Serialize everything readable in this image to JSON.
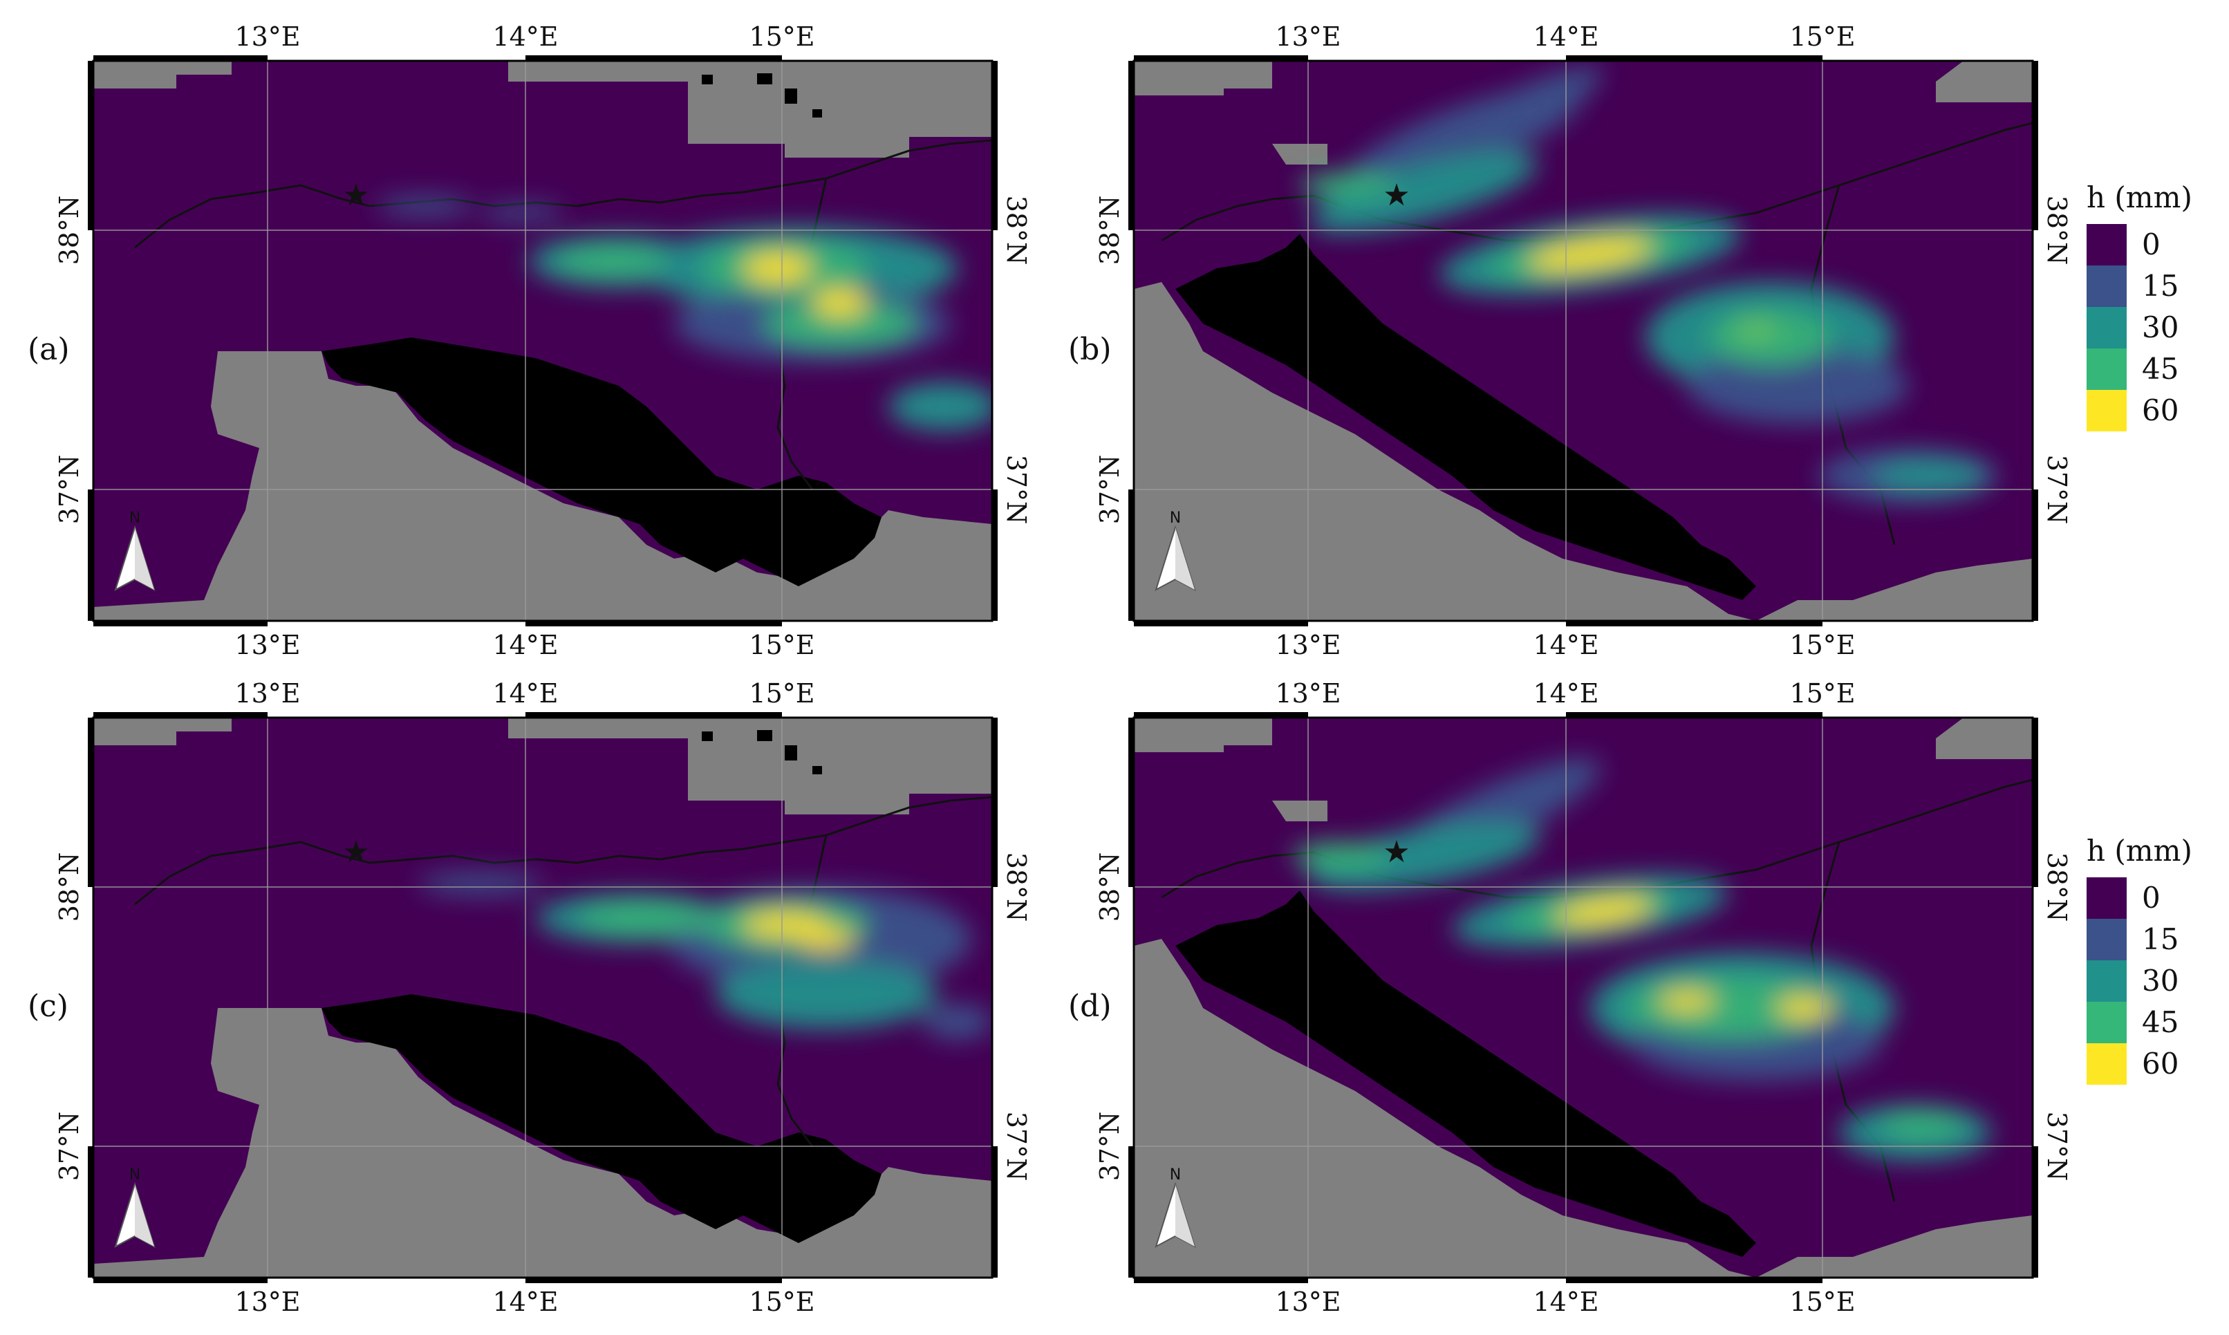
{
  "figure": {
    "panels": [
      {
        "id": "a",
        "label": "(a)",
        "xticks": [
          "13°E",
          "14°E",
          "15°E"
        ],
        "yticks": [
          "38°N",
          "37°N"
        ]
      },
      {
        "id": "b",
        "label": "(b)",
        "xticks": [
          "13°E",
          "14°E",
          "15°E"
        ],
        "yticks": [
          "38°N",
          "37°N"
        ]
      },
      {
        "id": "c",
        "label": "(c)",
        "xticks": [
          "13°E",
          "14°E",
          "15°E"
        ],
        "yticks": [
          "38°N",
          "37°N"
        ]
      },
      {
        "id": "d",
        "label": "(d)",
        "xticks": [
          "13°E",
          "14°E",
          "15°E"
        ],
        "yticks": [
          "38°N",
          "37°N"
        ]
      }
    ],
    "legends": [
      {
        "title": "h (mm)",
        "entries": [
          {
            "value": "0",
            "color": "#440154"
          },
          {
            "value": "15",
            "color": "#3b528b"
          },
          {
            "value": "30",
            "color": "#21918c"
          },
          {
            "value": "45",
            "color": "#35b779"
          },
          {
            "value": "60",
            "color": "#fde725"
          }
        ]
      },
      {
        "title": "h (mm)",
        "entries": [
          {
            "value": "0",
            "color": "#440154"
          },
          {
            "value": "15",
            "color": "#3b528b"
          },
          {
            "value": "30",
            "color": "#21918c"
          },
          {
            "value": "45",
            "color": "#35b779"
          },
          {
            "value": "60",
            "color": "#fde725"
          }
        ]
      }
    ],
    "colors": {
      "land_gray": "#808080",
      "domain": "#440154",
      "mask": "#000000",
      "frame": "#000000"
    },
    "icons": [
      "north-arrow-icon",
      "star-icon"
    ]
  }
}
